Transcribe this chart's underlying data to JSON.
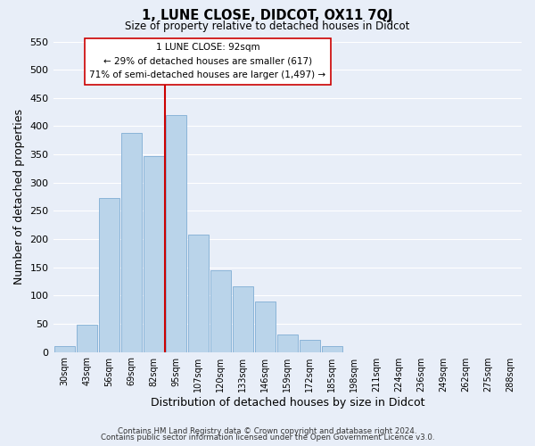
{
  "title": "1, LUNE CLOSE, DIDCOT, OX11 7QJ",
  "subtitle": "Size of property relative to detached houses in Didcot",
  "xlabel": "Distribution of detached houses by size in Didcot",
  "ylabel": "Number of detached properties",
  "categories": [
    "30sqm",
    "43sqm",
    "56sqm",
    "69sqm",
    "82sqm",
    "95sqm",
    "107sqm",
    "120sqm",
    "133sqm",
    "146sqm",
    "159sqm",
    "172sqm",
    "185sqm",
    "198sqm",
    "211sqm",
    "224sqm",
    "236sqm",
    "249sqm",
    "262sqm",
    "275sqm",
    "288sqm"
  ],
  "values": [
    10,
    48,
    272,
    388,
    347,
    420,
    208,
    145,
    117,
    90,
    31,
    22,
    11,
    0,
    0,
    0,
    0,
    0,
    0,
    0,
    0
  ],
  "bar_color": "#bad4ea",
  "bar_edge_color": "#8ab4d8",
  "vline_color": "#cc0000",
  "ylim": [
    0,
    550
  ],
  "yticks": [
    0,
    50,
    100,
    150,
    200,
    250,
    300,
    350,
    400,
    450,
    500,
    550
  ],
  "annotation_title": "1 LUNE CLOSE: 92sqm",
  "annotation_line1": "← 29% of detached houses are smaller (617)",
  "annotation_line2": "71% of semi-detached houses are larger (1,497) →",
  "footer1": "Contains HM Land Registry data © Crown copyright and database right 2024.",
  "footer2": "Contains public sector information licensed under the Open Government Licence v3.0.",
  "fig_bg_color": "#e8eef8",
  "plot_bg_color": "#e8eef8",
  "grid_color": "#ffffff"
}
